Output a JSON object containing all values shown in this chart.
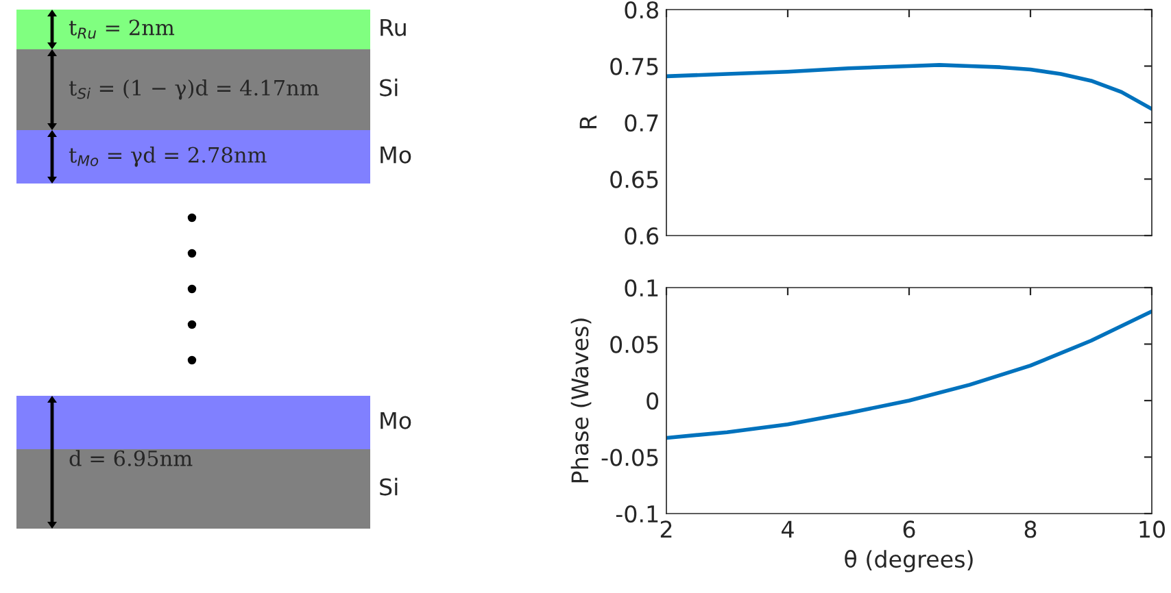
{
  "chart_data": [
    {
      "type": "other",
      "annotations": [
        "t$_{Ru}$ = 2nm",
        "Ru",
        "t$_{Si}$ = (1 − γ)d = 4.17nm",
        "Si",
        "t$_{Mo}$ = γd = 2.78nm",
        "Mo",
        "Mo",
        "d = 6.95nm",
        "Si"
      ]
    },
    {
      "type": "line",
      "ylabel": "R",
      "x": [
        2,
        3,
        4,
        5,
        6,
        6.5,
        7,
        7.5,
        8,
        8.5,
        9,
        9.5,
        10
      ],
      "series": [
        {
          "color": "#0072bd",
          "values": [
            0.741,
            0.743,
            0.745,
            0.748,
            0.75,
            0.751,
            0.75,
            0.749,
            0.747,
            0.743,
            0.737,
            0.727,
            0.712
          ]
        }
      ],
      "xlim": [
        2,
        10
      ],
      "xticks": [
        2,
        4,
        6,
        8,
        10
      ],
      "ylim": [
        0.6,
        0.8
      ],
      "yticks": [
        0.6,
        0.65,
        0.7,
        0.75,
        0.8
      ],
      "tick_labels": "y",
      "grid": false,
      "legend": false
    },
    {
      "type": "line",
      "xlabel": "θ (degrees)",
      "ylabel": "Phase (Waves)",
      "x": [
        2,
        3,
        4,
        5,
        6,
        7,
        8,
        9,
        10
      ],
      "series": [
        {
          "color": "#0072bd",
          "values": [
            -0.033,
            -0.028,
            -0.021,
            -0.011,
            0.0,
            0.014,
            0.031,
            0.053,
            0.079
          ]
        }
      ],
      "xlim": [
        2,
        10
      ],
      "xticks": [
        2,
        4,
        6,
        8,
        10
      ],
      "ylim": [
        -0.1,
        0.1
      ],
      "yticks": [
        -0.1,
        -0.05,
        0,
        0.05,
        0.1
      ],
      "grid": false,
      "legend": false
    }
  ]
}
